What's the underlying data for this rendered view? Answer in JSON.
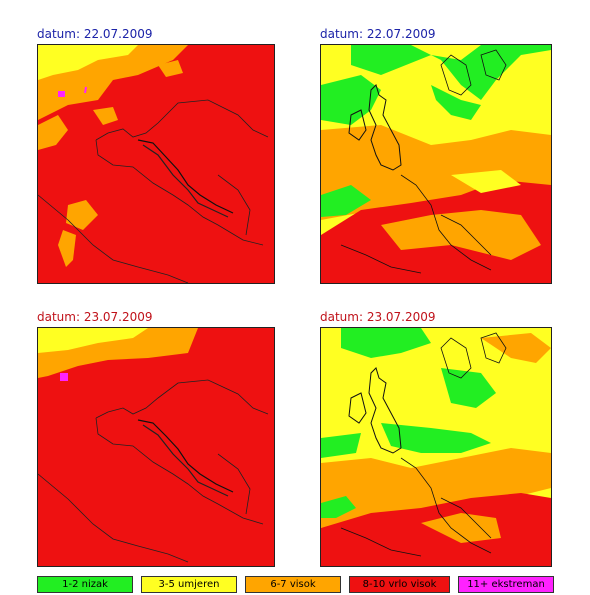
{
  "panels": [
    {
      "date_label": "datum: 22.07.2009",
      "label_color": "#1c23a8"
    },
    {
      "date_label": "datum: 22.07.2009",
      "label_color": "#1c23a8"
    },
    {
      "date_label": "datum: 23.07.2009",
      "label_color": "#c0121a"
    },
    {
      "date_label": "datum: 23.07.2009",
      "label_color": "#c0121a"
    }
  ],
  "legend": [
    {
      "label": "1-2 nizak",
      "color": "#22ee22"
    },
    {
      "label": "3-5 umjeren",
      "color": "#ffff22"
    },
    {
      "label": "6-7 visok",
      "color": "#ffa500"
    },
    {
      "label": "8-10 vrlo visok",
      "color": "#ee1111"
    },
    {
      "label": "11+ ekstreman",
      "color": "#ff22ff"
    }
  ]
}
